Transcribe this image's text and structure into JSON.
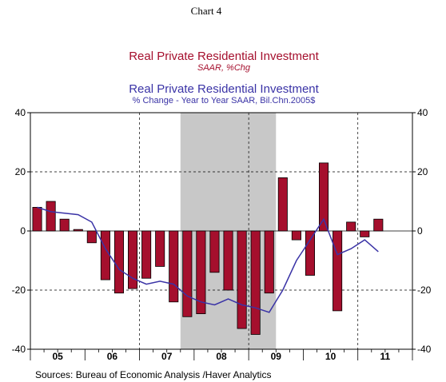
{
  "chart_label": "Chart 4",
  "sources": "Sources:  Bureau of Economic Analysis /Haver Analytics",
  "chart_data": {
    "type": "bar",
    "title": "Real Private Residential Investment",
    "subtitle": "SAAR, %Chg",
    "title2": "Real Private Residential Investment",
    "subtitle2": "% Change - Year to Year     SAAR, Bil.Chn.2005$",
    "ylim": [
      -40,
      40
    ],
    "yticks": [
      40,
      20,
      0,
      -20,
      -40
    ],
    "year_labels": [
      "05",
      "06",
      "07",
      "08",
      "09",
      "10",
      "11"
    ],
    "year_start": 2005,
    "recession_shading": {
      "start": 2007.75,
      "end": 2009.5
    },
    "colors": {
      "bars": "#a50f2d",
      "line": "#3a33a6",
      "recession": "#c8c8c8",
      "title1": "#a50f2d",
      "title2": "#3a33a6"
    },
    "series": [
      {
        "values": [
          8,
          10,
          4,
          0.5,
          -4,
          -16.5,
          -21,
          -19.5,
          -16,
          -12,
          -24,
          -29,
          -28,
          -14,
          -20,
          -33,
          -35,
          -21,
          18,
          -3,
          -15,
          23,
          -27,
          3,
          -2,
          4
        ],
        "x": [
          2005.0,
          2005.25,
          2005.5,
          2005.75,
          2006.0,
          2006.25,
          2006.5,
          2006.75,
          2007.0,
          2007.25,
          2007.5,
          2007.75,
          2008.0,
          2008.25,
          2008.5,
          2008.75,
          2009.0,
          2009.25,
          2009.5,
          2009.75,
          2010.0,
          2010.25,
          2010.5,
          2010.75,
          2011.0,
          2011.25
        ]
      },
      {
        "values": [
          8,
          6.5,
          6,
          5.5,
          3,
          -6,
          -13,
          -16,
          -18,
          -17,
          -18,
          -22,
          -24,
          -25,
          -23,
          -25,
          -26,
          -27.5,
          -20,
          -10,
          -3,
          4,
          -8,
          -6,
          -3,
          -7
        ],
        "x": [
          2005.0,
          2005.25,
          2005.5,
          2005.75,
          2006.0,
          2006.25,
          2006.5,
          2006.75,
          2007.0,
          2007.25,
          2007.5,
          2007.75,
          2008.0,
          2008.25,
          2008.5,
          2008.75,
          2009.0,
          2009.25,
          2009.5,
          2009.75,
          2010.0,
          2010.25,
          2010.5,
          2010.75,
          2011.0,
          2011.25
        ]
      }
    ]
  }
}
